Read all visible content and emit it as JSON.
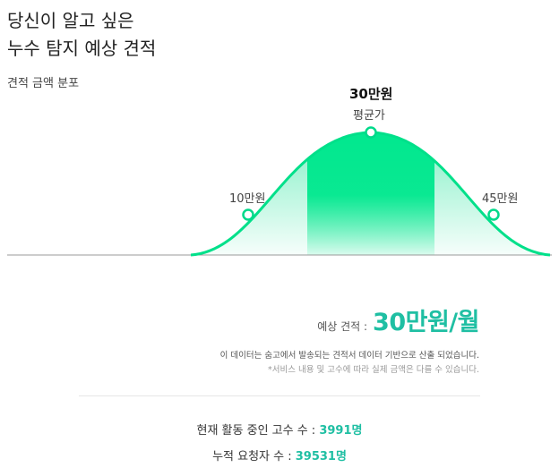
{
  "headline": {
    "line1": "당신이 알고 싶은",
    "line2": "누수 탐지 예상 견적"
  },
  "distribution": {
    "label": "견적 금액 분포",
    "average_value": "30만원",
    "average_caption": "평균가",
    "low_label": "10만원",
    "high_label": "45만원"
  },
  "estimate": {
    "label": "예상 견적 :",
    "value": "30만원/월",
    "note": "이 데이터는 숨고에서 발송되는 견적서 데이터 기반으로 산출 되었습니다.",
    "disclaimer": "*서비스 내용 및 고수에 따라 실제 금액은 다를 수 있습니다."
  },
  "stats": {
    "active_pros_label": "현재 활동 중인 고수 수 :",
    "active_pros_value": "3991명",
    "requests_label": "누적 요청자 수 :",
    "requests_value": "39531명"
  },
  "colors": {
    "accent": "#1fbfa3",
    "curve": "#00e08a",
    "band": "#00e890"
  }
}
